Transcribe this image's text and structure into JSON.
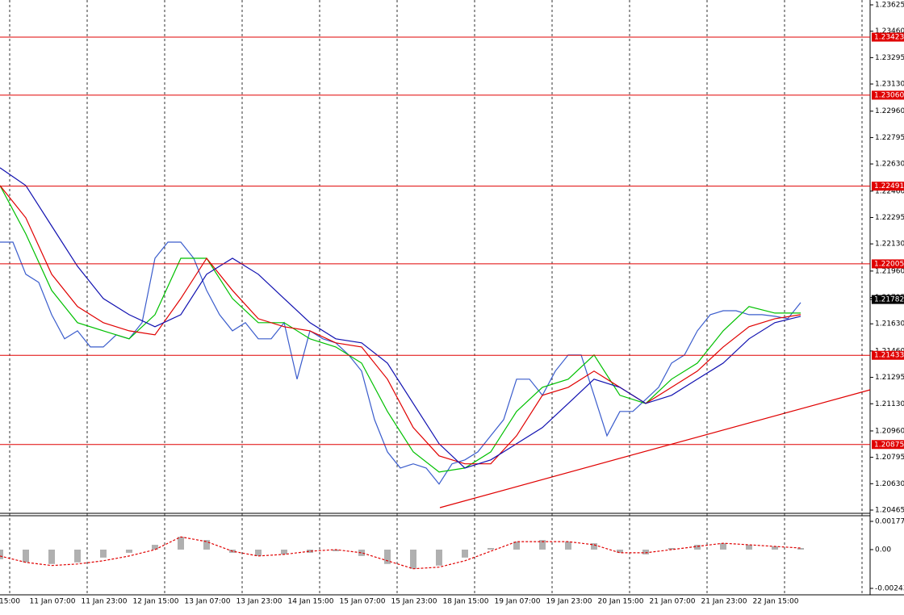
{
  "chart_data": [
    {
      "type": "line",
      "ylim": [
        1.20465,
        1.23625
      ],
      "yticks": [
        1.23625,
        {
          "value": 1.2346,
          "label": "1.23460"
        },
        1.23295,
        {
          "value": 1.2313,
          "label": "1.23130"
        },
        {
          "value": 1.2296,
          "label": "1.22960"
        },
        1.22795,
        {
          "value": 1.2263,
          "label": "1.22630"
        },
        {
          "value": 1.2246,
          "label": "1.22460"
        },
        1.22295,
        {
          "value": 1.2213,
          "label": "1.22130"
        },
        {
          "value": 1.2196,
          "label": "1.21960"
        },
        1.21795,
        {
          "value": 1.2163,
          "label": "1.21630"
        },
        {
          "value": 1.2146,
          "label": "1.21460"
        },
        1.21295,
        {
          "value": 1.2113,
          "label": "1.21130"
        },
        {
          "value": 1.2096,
          "label": "1.20960"
        },
        1.20795,
        {
          "value": 1.2063,
          "label": "1.20630"
        },
        1.20465
      ],
      "levels": [
        1.23423,
        {
          "value": 1.2306,
          "label": "1.23060"
        },
        1.22491,
        1.22005,
        1.21433,
        1.20875
      ],
      "level_color": "#e00000",
      "current_price": 1.21782,
      "x_labels": [
        "15:00",
        "11 Jan 07:00",
        "11 Jan 23:00",
        "12 Jan 15:00",
        "13 Jan 07:00",
        "13 Jan 23:00",
        "14 Jan 15:00",
        "15 Jan 07:00",
        "15 Jan 23:00",
        "18 Jan 15:00",
        "19 Jan 07:00",
        "19 Jan 23:00",
        "20 Jan 15:00",
        "21 Jan 07:00",
        "21 Jan 23:00",
        "22 Jan 15:00"
      ],
      "series": [
        {
          "color": "#3a5ccc",
          "values": [
            1.22141,
            1.22141,
            1.2194,
            1.21889,
            1.21687,
            1.21536,
            1.21586,
            1.21485,
            1.21485,
            1.21561,
            1.21536,
            1.21637,
            1.2204,
            1.22141,
            1.22141,
            1.2204,
            1.21839,
            1.21687,
            1.21586,
            1.21637,
            1.21536,
            1.21536,
            1.21637,
            1.21284,
            1.21586,
            1.21536,
            1.21511,
            1.21435,
            1.21334,
            1.21031,
            1.20829,
            1.20728,
            1.20754,
            1.20728,
            1.20628,
            1.20754,
            1.20779,
            1.20829,
            1.2093,
            1.21031,
            1.21284,
            1.21284,
            1.21183,
            1.21334,
            1.21435,
            1.21435,
            1.21183,
            1.2093,
            1.21082,
            1.21082,
            1.21157,
            1.21233,
            1.21384,
            1.21435,
            1.21586,
            1.21687,
            1.21712,
            1.21712,
            1.21687,
            1.21687,
            1.21677,
            1.21662,
            1.21763
          ]
        },
        {
          "color": "#00c000",
          "values": [
            1.22495,
            1.22192,
            1.21839,
            1.21637,
            1.21586,
            1.21536,
            1.21687,
            1.2204,
            1.2204,
            1.21788,
            1.21637,
            1.21637,
            1.21536,
            1.21485,
            1.21384,
            1.21082,
            1.20829,
            1.20703,
            1.20728,
            1.20829,
            1.21082,
            1.21233,
            1.21284,
            1.21435,
            1.21183,
            1.21132,
            1.21284,
            1.21384,
            1.21586,
            1.21738,
            1.21697,
            1.21697
          ]
        },
        {
          "color": "#e00000",
          "values": [
            1.22495,
            1.22293,
            1.2194,
            1.21738,
            1.21637,
            1.21586,
            1.21561,
            1.21788,
            1.2204,
            1.21839,
            1.21662,
            1.21612,
            1.21586,
            1.21511,
            1.21485,
            1.21284,
            1.20981,
            1.20804,
            1.20754,
            1.20754,
            1.2093,
            1.21183,
            1.21233,
            1.21334,
            1.21233,
            1.21132,
            1.21233,
            1.21334,
            1.21485,
            1.21612,
            1.21662,
            1.21687
          ]
        },
        {
          "color": "#1010b0",
          "values": [
            1.22606,
            1.22495,
            1.22242,
            1.2199,
            1.21788,
            1.21687,
            1.21612,
            1.21687,
            1.2194,
            1.2204,
            1.2194,
            1.21788,
            1.21637,
            1.21536,
            1.21511,
            1.21384,
            1.21132,
            1.2088,
            1.20728,
            1.20779,
            1.2088,
            1.20981,
            1.21132,
            1.21284,
            1.21233,
            1.21132,
            1.21183,
            1.21284,
            1.21384,
            1.21536,
            1.21637,
            1.21677
          ]
        }
      ]
    },
    {
      "type": "bar",
      "ylim": [
        -0.00243,
        0.00177
      ],
      "yticks": [
        0.00177,
        {
          "value": 0,
          "label": "0.00"
        },
        -0.00243
      ],
      "color": "#b0b0b0",
      "values": [
        -0.0006,
        -0.0008,
        -0.0009,
        -0.0008,
        -0.0005,
        -0.0002,
        0.0003,
        0.0008,
        0.0006,
        -0.0002,
        -0.0004,
        -0.0003,
        -0.0002,
        -0.0001,
        -0.0004,
        -0.0009,
        -0.0012,
        -0.001,
        -0.0005,
        0.0001,
        0.0005,
        0.0006,
        0.0005,
        0.0004,
        -0.0002,
        -0.0003,
        0.0001,
        0.0003,
        0.0004,
        0.0003,
        0.0002,
        0.0001
      ],
      "signal": {
        "color": "#e00000",
        "values": [
          -0.0004,
          -0.0008,
          -0.001,
          -0.0009,
          -0.0007,
          -0.0004,
          0,
          0.0008,
          0.0005,
          -0.0001,
          -0.0004,
          -0.0003,
          -0.0001,
          0,
          -0.0002,
          -0.0007,
          -0.0012,
          -0.0011,
          -0.0007,
          -0.0001,
          0.0005,
          0.0005,
          0.0005,
          0.0003,
          -0.0002,
          -0.0002,
          0,
          0.0002,
          0.0004,
          0.0003,
          0.0002,
          0.0001
        ]
      }
    }
  ]
}
